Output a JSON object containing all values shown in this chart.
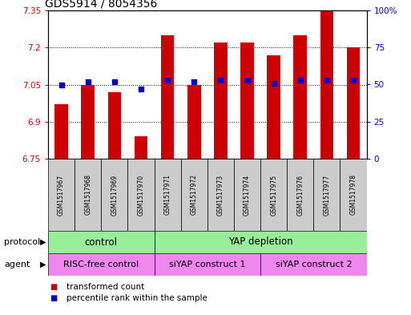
{
  "title": "GDS5914 / 8054356",
  "samples": [
    "GSM1517967",
    "GSM1517968",
    "GSM1517969",
    "GSM1517970",
    "GSM1517971",
    "GSM1517972",
    "GSM1517973",
    "GSM1517974",
    "GSM1517975",
    "GSM1517976",
    "GSM1517977",
    "GSM1517978"
  ],
  "transformed_count": [
    6.97,
    7.05,
    7.02,
    6.84,
    7.25,
    7.05,
    7.22,
    7.22,
    7.17,
    7.25,
    7.35,
    7.2
  ],
  "percentile_rank": [
    50,
    52,
    52,
    47,
    53,
    52,
    53,
    53,
    51,
    53,
    53,
    53
  ],
  "ylim_left": [
    6.75,
    7.35
  ],
  "ylim_right": [
    0,
    100
  ],
  "yticks_left": [
    6.75,
    6.9,
    7.05,
    7.2,
    7.35
  ],
  "yticks_right": [
    0,
    25,
    50,
    75,
    100
  ],
  "ytick_labels_left": [
    "6.75",
    "6.9",
    "7.05",
    "7.2",
    "7.35"
  ],
  "ytick_labels_right": [
    "0",
    "25",
    "50",
    "75",
    "100%"
  ],
  "bar_color": "#cc0000",
  "dot_color": "#0000cc",
  "bar_width": 0.5,
  "protocol_labels": [
    "control",
    "YAP depletion"
  ],
  "protocol_ranges": [
    [
      0,
      4
    ],
    [
      4,
      12
    ]
  ],
  "protocol_color": "#99ee99",
  "agent_labels": [
    "RISC-free control",
    "siYAP construct 1",
    "siYAP construct 2"
  ],
  "agent_ranges": [
    [
      0,
      4
    ],
    [
      4,
      8
    ],
    [
      8,
      12
    ]
  ],
  "agent_color": "#ee88ee",
  "sample_bg_color": "#cccccc",
  "legend_items": [
    "transformed count",
    "percentile rank within the sample"
  ],
  "legend_colors": [
    "#cc0000",
    "#0000cc"
  ],
  "grid_color": "#000000",
  "title_fontsize": 10,
  "tick_fontsize": 7.5,
  "label_fontsize": 8.5,
  "sample_fontsize": 5.5,
  "legend_fontsize": 7.5,
  "row_label_fontsize": 8
}
